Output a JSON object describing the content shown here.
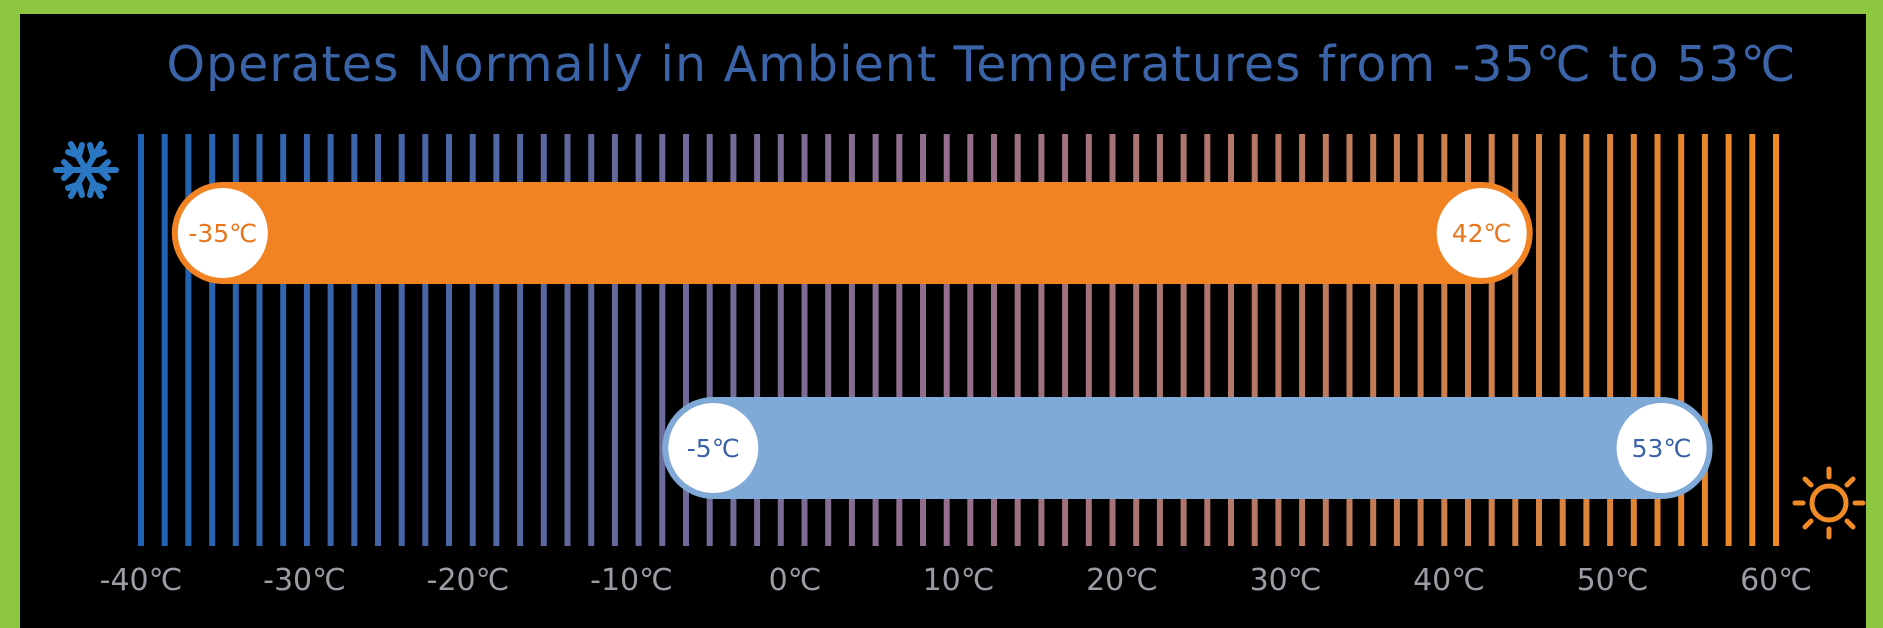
{
  "title": "Operates Normally in Ambient Temperatures from -35℃ to 53℃",
  "colors": {
    "frame": "#8dc63f",
    "background": "#000000",
    "title": "#3b64a8",
    "cold_stripe": "#1e62b4",
    "hot_stripe": "#f08a24",
    "orange_bar": "#f28322",
    "blue_bar": "#7fa9d6",
    "snowflake": "#2a78c4",
    "sun": "#f08a24",
    "tick_text": "#9b9da4"
  },
  "icons": {
    "cold": "snowflake-icon",
    "hot": "sun-icon"
  },
  "scale": {
    "min": -40,
    "max": 60,
    "stripe_count": 70,
    "ticks": [
      {
        "value": -40,
        "label": "-40℃"
      },
      {
        "value": -30,
        "label": "-30℃"
      },
      {
        "value": -20,
        "label": "-20℃"
      },
      {
        "value": -10,
        "label": "-10℃"
      },
      {
        "value": 0,
        "label": "0℃"
      },
      {
        "value": 10,
        "label": "10℃"
      },
      {
        "value": 20,
        "label": "20℃"
      },
      {
        "value": 30,
        "label": "30℃"
      },
      {
        "value": 40,
        "label": "40℃"
      },
      {
        "value": 50,
        "label": "50℃"
      },
      {
        "value": 60,
        "label": "60℃"
      }
    ]
  },
  "ranges": [
    {
      "name": "orange-range",
      "from": -35,
      "to": 42,
      "from_label": "-35℃",
      "to_label": "42℃",
      "fill": "#f28322",
      "label_color": "#e8761c"
    },
    {
      "name": "blue-range",
      "from": -5,
      "to": 53,
      "from_label": "-5℃",
      "to_label": "53℃",
      "fill": "#7fa9d6",
      "label_color": "#3a62a6"
    }
  ]
}
